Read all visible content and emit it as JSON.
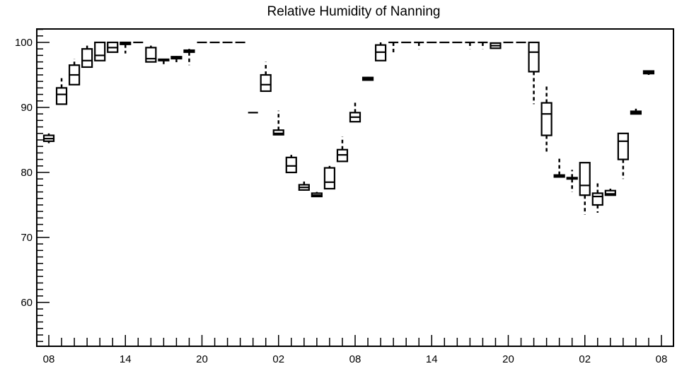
{
  "chart_data": {
    "type": "boxplot",
    "title": "Relative Humidity of Nanning",
    "xlabel": "",
    "ylabel": "",
    "ylim": [
      53,
      102
    ],
    "xlim": [
      0,
      48
    ],
    "grid": false,
    "y_ticks": [
      60,
      70,
      80,
      90,
      100
    ],
    "y_tick_labels": [
      "60",
      "70",
      "80",
      "90",
      "100"
    ],
    "x_ticks": [
      0,
      6,
      12,
      18,
      24,
      30,
      36,
      42,
      48
    ],
    "x_tick_labels": [
      "08",
      "14",
      "20",
      "02",
      "08",
      "14",
      "20",
      "02",
      "08"
    ],
    "colors": {
      "stroke": "#000000",
      "background": "#ffffff"
    },
    "boxes": [
      {
        "x": 0,
        "min": 84.5,
        "q1": 84.8,
        "median": 85.2,
        "q3": 85.7,
        "max": 86.0
      },
      {
        "x": 1,
        "min": 90.5,
        "q1": 90.5,
        "median": 92.0,
        "q3": 93.0,
        "max": 94.5
      },
      {
        "x": 2,
        "min": 93.5,
        "q1": 93.5,
        "median": 95.0,
        "q3": 96.5,
        "max": 97.5
      },
      {
        "x": 3,
        "min": 96.2,
        "q1": 96.2,
        "median": 97.2,
        "q3": 99.0,
        "max": 99.5
      },
      {
        "x": 4,
        "min": 97.2,
        "q1": 97.2,
        "median": 98.0,
        "q3": 100.0,
        "max": 100.0
      },
      {
        "x": 5,
        "min": 98.5,
        "q1": 98.5,
        "median": 99.2,
        "q3": 100.0,
        "max": 100.0
      },
      {
        "x": 6,
        "min": 98.3,
        "q1": 99.7,
        "median": 99.9,
        "q3": 100.0,
        "max": 100.0
      },
      {
        "x": 7,
        "min": 100.0,
        "q1": 100.0,
        "median": 100.0,
        "q3": 100.0,
        "max": 100.0
      },
      {
        "x": 8,
        "min": 97.0,
        "q1": 97.0,
        "median": 97.5,
        "q3": 99.2,
        "max": 99.5
      },
      {
        "x": 9,
        "min": 96.3,
        "q1": 97.2,
        "median": 97.3,
        "q3": 97.4,
        "max": 97.5
      },
      {
        "x": 10,
        "min": 96.7,
        "q1": 97.5,
        "median": 97.7,
        "q3": 97.8,
        "max": 97.9
      },
      {
        "x": 11,
        "min": 96.5,
        "q1": 98.5,
        "median": 98.6,
        "q3": 98.8,
        "max": 99.0
      },
      {
        "x": 12,
        "min": 100.0,
        "q1": 100.0,
        "median": 100.0,
        "q3": 100.0,
        "max": 100.0
      },
      {
        "x": 13,
        "min": 100.0,
        "q1": 100.0,
        "median": 100.0,
        "q3": 100.0,
        "max": 100.0
      },
      {
        "x": 14,
        "min": 100.0,
        "q1": 100.0,
        "median": 100.0,
        "q3": 100.0,
        "max": 100.0
      },
      {
        "x": 15,
        "min": 100.0,
        "q1": 100.0,
        "median": 100.0,
        "q3": 100.0,
        "max": 100.0
      },
      {
        "x": 16,
        "min": 89.2,
        "q1": 89.2,
        "median": 89.2,
        "q3": 89.2,
        "max": 89.2
      },
      {
        "x": 17,
        "min": 92.5,
        "q1": 92.5,
        "median": 93.5,
        "q3": 95.0,
        "max": 97.0
      },
      {
        "x": 18,
        "min": 85.8,
        "q1": 85.8,
        "median": 86.0,
        "q3": 86.5,
        "max": 89.5
      },
      {
        "x": 19,
        "min": 80.0,
        "q1": 80.0,
        "median": 81.0,
        "q3": 82.3,
        "max": 82.7
      },
      {
        "x": 20,
        "min": 77.2,
        "q1": 77.3,
        "median": 77.7,
        "q3": 78.1,
        "max": 78.6
      },
      {
        "x": 21,
        "min": 76.2,
        "q1": 76.3,
        "median": 76.5,
        "q3": 76.8,
        "max": 77.0
      },
      {
        "x": 22,
        "min": 77.5,
        "q1": 77.5,
        "median": 78.5,
        "q3": 80.7,
        "max": 81.0
      },
      {
        "x": 23,
        "min": 81.7,
        "q1": 81.7,
        "median": 82.7,
        "q3": 83.5,
        "max": 85.5
      },
      {
        "x": 24,
        "min": 87.8,
        "q1": 87.8,
        "median": 88.5,
        "q3": 89.2,
        "max": 91.0
      },
      {
        "x": 25,
        "min": 94.2,
        "q1": 94.2,
        "median": 94.4,
        "q3": 94.6,
        "max": 94.7
      },
      {
        "x": 26,
        "min": 97.2,
        "q1": 97.2,
        "median": 98.5,
        "q3": 99.6,
        "max": 100.0
      },
      {
        "x": 27,
        "min": 98.2,
        "q1": 100.0,
        "median": 100.0,
        "q3": 100.0,
        "max": 100.0
      },
      {
        "x": 28,
        "min": 100.0,
        "q1": 100.0,
        "median": 100.0,
        "q3": 100.0,
        "max": 100.0
      },
      {
        "x": 29,
        "min": 99.0,
        "q1": 100.0,
        "median": 100.0,
        "q3": 100.0,
        "max": 100.0
      },
      {
        "x": 30,
        "min": 100.0,
        "q1": 100.0,
        "median": 100.0,
        "q3": 100.0,
        "max": 100.0
      },
      {
        "x": 31,
        "min": 100.0,
        "q1": 100.0,
        "median": 100.0,
        "q3": 100.0,
        "max": 100.0
      },
      {
        "x": 32,
        "min": 100.0,
        "q1": 100.0,
        "median": 100.0,
        "q3": 100.0,
        "max": 100.0
      },
      {
        "x": 33,
        "min": 99.0,
        "q1": 100.0,
        "median": 100.0,
        "q3": 100.0,
        "max": 100.0
      },
      {
        "x": 34,
        "min": 99.0,
        "q1": 100.0,
        "median": 100.0,
        "q3": 100.0,
        "max": 100.0
      },
      {
        "x": 35,
        "min": 99.1,
        "q1": 99.1,
        "median": 99.5,
        "q3": 99.9,
        "max": 100.0
      },
      {
        "x": 36,
        "min": 100.0,
        "q1": 100.0,
        "median": 100.0,
        "q3": 100.0,
        "max": 100.0
      },
      {
        "x": 37,
        "min": 100.0,
        "q1": 100.0,
        "median": 100.0,
        "q3": 100.0,
        "max": 100.0
      },
      {
        "x": 38,
        "min": 90.5,
        "q1": 95.5,
        "median": 98.5,
        "q3": 100.0,
        "max": 100.0
      },
      {
        "x": 39,
        "min": 83.2,
        "q1": 85.7,
        "median": 89.0,
        "q3": 90.7,
        "max": 93.5
      },
      {
        "x": 40,
        "min": 79.3,
        "q1": 79.3,
        "median": 79.4,
        "q3": 79.6,
        "max": 82.3
      },
      {
        "x": 41,
        "min": 77.0,
        "q1": 79.0,
        "median": 79.1,
        "q3": 79.2,
        "max": 80.4
      },
      {
        "x": 42,
        "min": 73.5,
        "q1": 76.5,
        "median": 78.0,
        "q3": 81.5,
        "max": 81.5
      },
      {
        "x": 43,
        "min": 73.8,
        "q1": 75.0,
        "median": 76.3,
        "q3": 76.8,
        "max": 78.5
      },
      {
        "x": 44,
        "min": 76.5,
        "q1": 76.5,
        "median": 76.7,
        "q3": 77.2,
        "max": 77.5
      },
      {
        "x": 45,
        "min": 79.0,
        "q1": 82.0,
        "median": 84.8,
        "q3": 86.0,
        "max": 86.0
      },
      {
        "x": 46,
        "min": 89.0,
        "q1": 89.0,
        "median": 89.2,
        "q3": 89.4,
        "max": 89.8
      },
      {
        "x": 47,
        "min": 95.0,
        "q1": 95.2,
        "median": 95.4,
        "q3": 95.6,
        "max": 95.7
      }
    ]
  }
}
